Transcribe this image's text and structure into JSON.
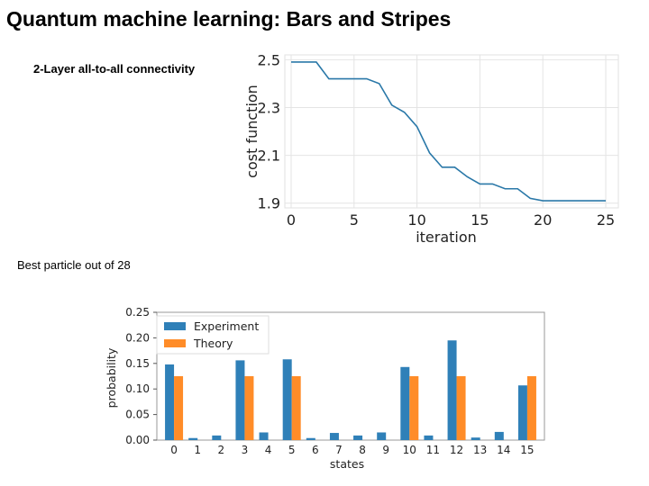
{
  "slide": {
    "title": "Quantum machine learning: Bars and Stripes",
    "subtitle_top": "2-Layer all-to-all connectivity",
    "subtitle_bottom": "Best particle out of 28"
  },
  "chart_data": [
    {
      "type": "line",
      "title": "",
      "xlabel": "iteration",
      "ylabel": "cost function",
      "xlim": [
        -0.5,
        26
      ],
      "ylim": [
        1.88,
        2.52
      ],
      "xticks": [
        0,
        5,
        10,
        15,
        20,
        25
      ],
      "yticks": [
        1.9,
        2.1,
        2.3,
        2.5
      ],
      "ytick_labels": [
        "1.9",
        "2.1",
        "2.3",
        "2.5"
      ],
      "grid": true,
      "line_color": "#2a78a8",
      "x": [
        0,
        1,
        2,
        3,
        4,
        5,
        6,
        7,
        8,
        9,
        10,
        11,
        12,
        13,
        14,
        15,
        16,
        17,
        18,
        19,
        20,
        21,
        22,
        23,
        24,
        25
      ],
      "y": [
        2.49,
        2.49,
        2.49,
        2.42,
        2.42,
        2.42,
        2.42,
        2.4,
        2.31,
        2.28,
        2.22,
        2.11,
        2.05,
        2.05,
        2.01,
        1.98,
        1.98,
        1.96,
        1.96,
        1.92,
        1.91,
        1.91,
        1.91,
        1.91,
        1.91,
        1.91
      ]
    },
    {
      "type": "bar",
      "title": "",
      "xlabel": "states",
      "ylabel": "probability",
      "ylim": [
        0,
        0.25
      ],
      "yticks": [
        0,
        0.05,
        0.1,
        0.15,
        0.2,
        0.25
      ],
      "ytick_labels": [
        "0.00",
        "0.05",
        "0.10",
        "0.15",
        "0.20",
        "0.25"
      ],
      "categories": [
        "0",
        "1",
        "2",
        "3",
        "4",
        "5",
        "6",
        "7",
        "8",
        "9",
        "10",
        "11",
        "12",
        "13",
        "14",
        "15"
      ],
      "legend_position": "top-left",
      "series": [
        {
          "name": "Experiment",
          "color": "#2f80b8",
          "values": [
            0.148,
            0.004,
            0.009,
            0.156,
            0.015,
            0.158,
            0.004,
            0.014,
            0.009,
            0.015,
            0.143,
            0.009,
            0.195,
            0.005,
            0.016,
            0.107
          ]
        },
        {
          "name": "Theory",
          "color": "#ff8c28",
          "values": [
            0.125,
            0,
            0,
            0.125,
            0,
            0.125,
            0,
            0,
            0,
            0,
            0.125,
            0,
            0.125,
            0,
            0,
            0.125
          ]
        }
      ]
    }
  ]
}
